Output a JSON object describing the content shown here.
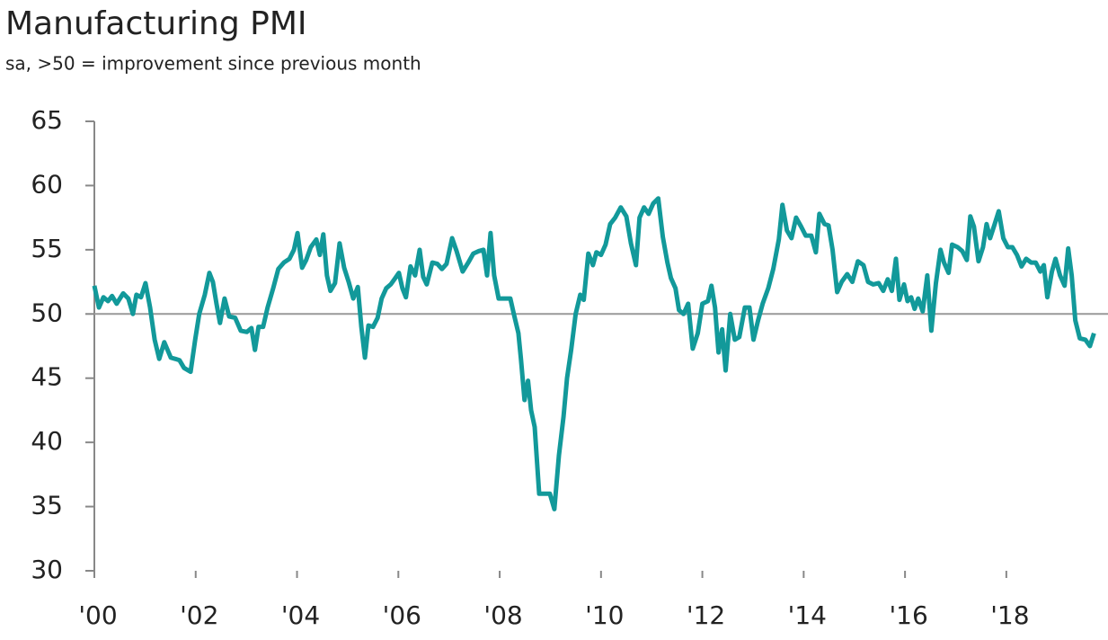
{
  "chart_data": {
    "type": "line",
    "title": "Manufacturing PMI",
    "subtitle": "sa, >50 = improvement since previous month",
    "x": [
      2000.0,
      2000.09,
      2000.18,
      2000.27,
      2000.35,
      2000.44,
      2000.57,
      2000.67,
      2000.76,
      2000.83,
      2000.92,
      2001.01,
      2001.1,
      2001.19,
      2001.28,
      2001.38,
      2001.51,
      2001.6,
      2001.68,
      2001.77,
      2001.9,
      2001.99,
      2002.07,
      2002.18,
      2002.27,
      2002.34,
      2002.41,
      2002.48,
      2002.57,
      2002.66,
      2002.78,
      2002.89,
      2003.01,
      2003.1,
      2003.17,
      2003.24,
      2003.33,
      2003.42,
      2003.53,
      2003.63,
      2003.74,
      2003.85,
      2003.94,
      2004.01,
      2004.1,
      2004.18,
      2004.27,
      2004.38,
      2004.45,
      2004.52,
      2004.59,
      2004.66,
      2004.75,
      2004.84,
      2004.93,
      2005.02,
      2005.11,
      2005.2,
      2005.27,
      2005.34,
      2005.41,
      2005.5,
      2005.59,
      2005.67,
      2005.76,
      2005.85,
      2005.94,
      2006.01,
      2006.08,
      2006.15,
      2006.24,
      2006.33,
      2006.42,
      2006.49,
      2006.56,
      2006.67,
      2006.77,
      2006.86,
      2006.95,
      2007.06,
      2007.15,
      2007.27,
      2007.38,
      2007.48,
      2007.59,
      2007.68,
      2007.75,
      2007.82,
      2007.89,
      2007.98,
      2008.09,
      2008.21,
      2008.28,
      2008.37,
      2008.42,
      2008.49,
      2008.56,
      2008.62,
      2008.69,
      2008.78,
      2008.88,
      2008.99,
      2009.08,
      2009.17,
      2009.26,
      2009.33,
      2009.41,
      2009.5,
      2009.59,
      2009.66,
      2009.75,
      2009.84,
      2009.91,
      2010.0,
      2010.09,
      2010.18,
      2010.28,
      2010.39,
      2010.5,
      2010.59,
      2010.69,
      2010.76,
      2010.85,
      2010.94,
      2011.03,
      2011.13,
      2011.22,
      2011.31,
      2011.38,
      2011.47,
      2011.54,
      2011.63,
      2011.72,
      2011.81,
      2011.91,
      2012.0,
      2012.11,
      2012.18,
      2012.25,
      2012.32,
      2012.39,
      2012.46,
      2012.55,
      2012.64,
      2012.73,
      2012.84,
      2012.93,
      2013.01,
      2013.1,
      2013.19,
      2013.3,
      2013.4,
      2013.51,
      2013.58,
      2013.67,
      2013.76,
      2013.85,
      2013.95,
      2014.04,
      2014.15,
      2014.24,
      2014.31,
      2014.41,
      2014.49,
      2014.57,
      2014.66,
      2014.75,
      2014.86,
      2014.96,
      2015.07,
      2015.18,
      2015.27,
      2015.37,
      2015.48,
      2015.57,
      2015.66,
      2015.74,
      2015.82,
      2015.89,
      2015.98,
      2016.05,
      2016.12,
      2016.19,
      2016.26,
      2016.35,
      2016.44,
      2016.52,
      2016.61,
      2016.7,
      2016.77,
      2016.86,
      2016.93,
      2017.04,
      2017.13,
      2017.22,
      2017.29,
      2017.36,
      2017.45,
      2017.54,
      2017.61,
      2017.68,
      2017.77,
      2017.85,
      2017.94,
      2018.03,
      2018.12,
      2018.21,
      2018.3,
      2018.39,
      2018.49,
      2018.58,
      2018.67,
      2018.74,
      2018.81,
      2018.9,
      2018.97,
      2019.06,
      2019.15,
      2019.22,
      2019.29,
      2019.36,
      2019.45,
      2019.56,
      2019.65,
      2019.73
    ],
    "series": [
      {
        "name": "Manufacturing PMI",
        "color": "#12999a",
        "values": [
          52.2,
          50.5,
          51.3,
          51.0,
          51.4,
          50.8,
          51.6,
          51.2,
          50.0,
          51.5,
          51.3,
          52.4,
          50.5,
          48.0,
          46.5,
          47.8,
          46.6,
          46.5,
          46.4,
          45.8,
          45.5,
          48.0,
          50.0,
          51.5,
          53.2,
          52.5,
          50.8,
          49.3,
          51.2,
          49.8,
          49.7,
          48.7,
          48.6,
          48.9,
          47.2,
          49.0,
          49.0,
          50.5,
          52.0,
          53.5,
          54.0,
          54.3,
          55.0,
          56.3,
          53.6,
          54.2,
          55.2,
          55.8,
          54.6,
          56.2,
          53.0,
          51.8,
          52.4,
          55.5,
          53.6,
          52.5,
          51.2,
          52.1,
          49.0,
          46.6,
          49.1,
          49.0,
          49.7,
          51.2,
          52.0,
          52.3,
          52.8,
          53.2,
          52.0,
          51.3,
          53.7,
          53.0,
          55.0,
          52.9,
          52.3,
          54.0,
          53.9,
          53.5,
          53.9,
          55.9,
          54.9,
          53.3,
          54.0,
          54.7,
          54.9,
          55.0,
          53.0,
          56.3,
          53.0,
          51.2,
          51.2,
          51.2,
          50.0,
          48.5,
          46.5,
          43.3,
          44.8,
          42.5,
          41.2,
          36.0,
          36.0,
          36.0,
          34.8,
          39.0,
          42.0,
          45.0,
          47.2,
          50.0,
          51.5,
          51.1,
          54.7,
          53.8,
          54.8,
          54.6,
          55.4,
          57.0,
          57.5,
          58.3,
          57.6,
          55.5,
          53.8,
          57.5,
          58.3,
          57.8,
          58.6,
          59.0,
          56.0,
          54.0,
          52.8,
          52.0,
          50.3,
          50.0,
          50.8,
          47.3,
          48.5,
          50.8,
          51.0,
          52.2,
          50.5,
          47.0,
          48.8,
          45.6,
          50.0,
          48.0,
          48.2,
          50.5,
          50.5,
          48.0,
          49.5,
          50.8,
          52.0,
          53.5,
          55.8,
          58.5,
          56.5,
          55.9,
          57.5,
          56.8,
          56.1,
          56.1,
          54.8,
          57.8,
          57.0,
          56.9,
          55.0,
          51.7,
          52.5,
          53.1,
          52.5,
          54.1,
          53.8,
          52.5,
          52.3,
          52.4,
          51.8,
          52.7,
          51.8,
          54.3,
          51.1,
          52.3,
          51.0,
          51.3,
          50.4,
          51.2,
          50.2,
          53.0,
          48.7,
          52.4,
          55.0,
          54.0,
          53.2,
          55.4,
          55.2,
          54.9,
          54.2,
          57.6,
          56.8,
          54.1,
          55.2,
          57.0,
          55.9,
          57.0,
          58.0,
          55.9,
          55.2,
          55.2,
          54.6,
          53.7,
          54.3,
          54.0,
          54.0,
          53.3,
          53.8,
          51.3,
          53.3,
          54.3,
          53.0,
          52.2,
          55.1,
          53.0,
          49.5,
          48.1,
          48.0,
          47.5,
          48.5
        ]
      }
    ],
    "xlim": [
      2000,
      2019.9
    ],
    "xticks": [
      {
        "value": 2000,
        "label": "'00"
      },
      {
        "value": 2002,
        "label": "'02"
      },
      {
        "value": 2004,
        "label": "'04"
      },
      {
        "value": 2006,
        "label": "'06"
      },
      {
        "value": 2008,
        "label": "'08"
      },
      {
        "value": 2010,
        "label": "'10"
      },
      {
        "value": 2012,
        "label": "'12"
      },
      {
        "value": 2014,
        "label": "'14"
      },
      {
        "value": 2016,
        "label": "'16"
      },
      {
        "value": 2018,
        "label": "'18"
      }
    ],
    "ylim": [
      30,
      65
    ],
    "yticks": [
      30,
      35,
      40,
      45,
      50,
      55,
      60,
      65
    ],
    "reference_line": 50,
    "grid": false
  }
}
